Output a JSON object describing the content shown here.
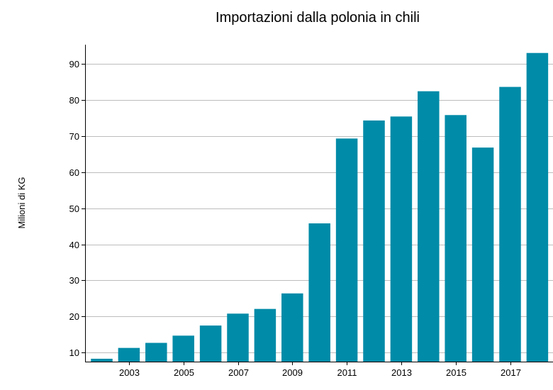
{
  "chart_data": {
    "type": "bar",
    "title": "Importazioni dalla polonia in chili",
    "xlabel": "",
    "ylabel": "Milioni di KG",
    "categories": [
      "2002",
      "2003",
      "2004",
      "2005",
      "2006",
      "2007",
      "2008",
      "2009",
      "2010",
      "2011",
      "2012",
      "2013",
      "2014",
      "2015",
      "2016",
      "2017",
      "2018"
    ],
    "x_tick_labels": [
      "2003",
      "2005",
      "2007",
      "2009",
      "2011",
      "2013",
      "2015",
      "2017"
    ],
    "values": [
      8.3,
      11.3,
      12.7,
      14.7,
      17.5,
      20.8,
      22.1,
      26.4,
      45.8,
      69.3,
      74.3,
      75.4,
      82.4,
      75.8,
      66.8,
      83.6,
      93.0
    ],
    "y_ticks": [
      10,
      20,
      30,
      40,
      50,
      60,
      70,
      80,
      90
    ],
    "ylim": [
      7.5,
      95.3
    ],
    "grid": true,
    "bar_color": "#008ba8",
    "grid_color": "#bdbdbd"
  }
}
